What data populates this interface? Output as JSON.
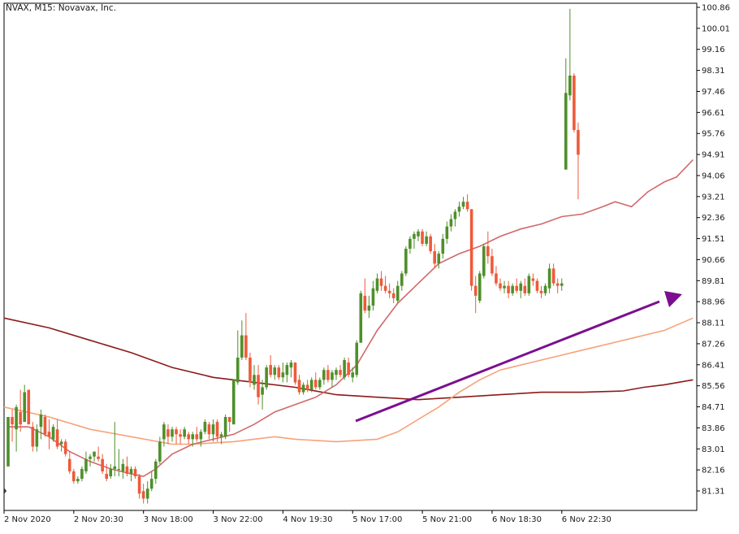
{
  "window": {
    "title": "NVAX, M15:  Novavax, Inc."
  },
  "colors": {
    "background": "#ffffff",
    "frame": "#000000",
    "bull_candle": "#4e8f2a",
    "bear_candle": "#ee5a3a",
    "ma_fast": "#d2686a",
    "ma_mid": "#f7a27a",
    "ma_slow": "#8b1a1a",
    "arrow": "#7b0f8f"
  },
  "chart_data": {
    "type": "candlestick",
    "title": "NVAX, M15:  Novavax, Inc.",
    "symbol": "NVAX",
    "timeframe": "M15",
    "company": "Novavax, Inc.",
    "ylim": [
      80.6,
      101.2
    ],
    "y_ticks": [
      "100.86",
      "100.01",
      "99.16",
      "98.31",
      "97.46",
      "96.61",
      "95.76",
      "94.91",
      "94.06",
      "93.21",
      "92.36",
      "91.51",
      "90.66",
      "89.81",
      "88.96",
      "88.11",
      "87.26",
      "86.41",
      "85.56",
      "84.71",
      "83.86",
      "83.01",
      "82.16",
      "81.31"
    ],
    "x_ticks": [
      "2 Nov 2020",
      "2 Nov 20:30",
      "3 Nov 18:00",
      "3 Nov 22:00",
      "4 Nov 19:30",
      "5 Nov 17:00",
      "5 Nov 21:00",
      "6 Nov 18:30",
      "6 Nov 22:30"
    ],
    "x_tick_bar_index": [
      0,
      17,
      34,
      51,
      68,
      85,
      102,
      119,
      136
    ],
    "grid": false,
    "candles": [
      [
        82.3,
        84.3,
        82.3,
        84.3
      ],
      [
        84.3,
        84.6,
        83.3,
        84.0
      ],
      [
        83.8,
        84.8,
        82.9,
        84.7
      ],
      [
        84.5,
        85.4,
        83.7,
        84.0
      ],
      [
        84.1,
        85.6,
        84.1,
        85.3
      ],
      [
        85.4,
        85.4,
        84.0,
        84.0
      ],
      [
        83.9,
        84.1,
        82.9,
        83.1
      ],
      [
        83.1,
        84.0,
        82.9,
        83.8
      ],
      [
        83.9,
        84.6,
        83.4,
        84.4
      ],
      [
        84.3,
        84.4,
        83.5,
        83.6
      ],
      [
        83.7,
        84.2,
        83.0,
        83.5
      ],
      [
        83.4,
        84.0,
        83.3,
        83.9
      ],
      [
        83.8,
        84.2,
        83.0,
        83.1
      ],
      [
        83.2,
        83.4,
        82.9,
        83.3
      ],
      [
        83.3,
        83.4,
        82.7,
        82.8
      ],
      [
        82.6,
        82.9,
        82.0,
        82.1
      ],
      [
        82.1,
        82.2,
        81.6,
        81.7
      ],
      [
        81.7,
        81.9,
        81.6,
        81.8
      ],
      [
        81.8,
        82.3,
        81.7,
        82.2
      ],
      [
        82.1,
        82.9,
        82.0,
        82.6
      ],
      [
        82.6,
        82.8,
        82.3,
        82.7
      ],
      [
        82.7,
        82.9,
        82.5,
        82.9
      ],
      [
        82.7,
        83.1,
        82.5,
        82.6
      ],
      [
        82.6,
        82.8,
        82.0,
        82.1
      ],
      [
        82.0,
        82.4,
        81.7,
        81.8
      ],
      [
        81.9,
        82.4,
        81.8,
        82.2
      ],
      [
        82.2,
        84.1,
        81.9,
        82.3
      ],
      [
        82.2,
        83.0,
        81.9,
        82.2
      ],
      [
        82.1,
        82.6,
        81.8,
        82.4
      ],
      [
        82.3,
        82.7,
        81.9,
        82.0
      ],
      [
        82.0,
        82.3,
        81.7,
        82.2
      ],
      [
        82.2,
        82.3,
        81.8,
        81.9
      ],
      [
        81.9,
        82.0,
        81.0,
        81.2
      ],
      [
        81.3,
        81.6,
        80.8,
        81.0
      ],
      [
        81.0,
        81.7,
        80.8,
        81.4
      ],
      [
        81.4,
        82.1,
        81.3,
        81.8
      ],
      [
        81.8,
        82.6,
        81.6,
        82.5
      ],
      [
        82.5,
        83.5,
        82.4,
        83.3
      ],
      [
        83.4,
        84.1,
        83.1,
        84.0
      ],
      [
        83.8,
        84.0,
        83.2,
        83.5
      ],
      [
        83.5,
        83.9,
        83.3,
        83.8
      ],
      [
        83.8,
        83.9,
        83.2,
        83.6
      ],
      [
        83.6,
        83.8,
        83.2,
        83.5
      ],
      [
        83.5,
        83.9,
        83.4,
        83.8
      ],
      [
        83.6,
        83.7,
        83.2,
        83.4
      ],
      [
        83.4,
        83.7,
        83.1,
        83.6
      ],
      [
        83.6,
        83.9,
        83.3,
        83.4
      ],
      [
        83.4,
        83.8,
        83.1,
        83.7
      ],
      [
        83.7,
        84.2,
        83.6,
        84.1
      ],
      [
        84.0,
        84.1,
        83.4,
        83.6
      ],
      [
        83.6,
        84.2,
        83.3,
        84.0
      ],
      [
        84.1,
        84.2,
        83.3,
        83.5
      ],
      [
        83.5,
        83.7,
        83.2,
        83.6
      ],
      [
        83.5,
        84.4,
        83.4,
        84.3
      ],
      [
        84.3,
        84.2,
        83.7,
        84.1
      ],
      [
        84.0,
        85.8,
        84.0,
        85.8
      ],
      [
        85.7,
        87.8,
        85.6,
        86.7
      ],
      [
        86.7,
        88.2,
        86.6,
        87.6
      ],
      [
        87.6,
        88.5,
        86.6,
        86.7
      ],
      [
        86.7,
        86.9,
        85.5,
        85.7
      ],
      [
        85.6,
        86.4,
        85.4,
        86.0
      ],
      [
        86.0,
        86.4,
        84.8,
        85.1
      ],
      [
        85.2,
        85.8,
        84.6,
        85.5
      ],
      [
        85.5,
        86.4,
        85.4,
        86.3
      ],
      [
        86.4,
        86.8,
        85.9,
        86.0
      ],
      [
        86.0,
        86.4,
        85.8,
        86.3
      ],
      [
        86.3,
        86.4,
        85.8,
        85.9
      ],
      [
        85.9,
        86.5,
        85.7,
        86.1
      ],
      [
        86.0,
        86.5,
        85.7,
        86.4
      ],
      [
        86.3,
        86.6,
        85.9,
        86.5
      ],
      [
        86.5,
        86.5,
        85.6,
        85.7
      ],
      [
        85.8,
        86.0,
        85.2,
        85.3
      ],
      [
        85.3,
        85.7,
        85.2,
        85.6
      ],
      [
        85.6,
        85.8,
        85.3,
        85.4
      ],
      [
        85.4,
        85.9,
        85.3,
        85.8
      ],
      [
        85.8,
        86.1,
        85.4,
        85.5
      ],
      [
        85.5,
        85.9,
        85.4,
        85.8
      ],
      [
        85.8,
        86.3,
        85.6,
        86.2
      ],
      [
        86.2,
        86.4,
        85.7,
        85.8
      ],
      [
        85.8,
        86.2,
        85.5,
        86.1
      ],
      [
        86.0,
        86.3,
        85.8,
        86.2
      ],
      [
        86.2,
        86.4,
        85.9,
        86.0
      ],
      [
        85.9,
        86.7,
        85.8,
        86.6
      ],
      [
        86.5,
        86.7,
        85.9,
        86.0
      ],
      [
        85.9,
        86.3,
        85.7,
        86.1
      ],
      [
        86.0,
        87.4,
        85.9,
        87.3
      ],
      [
        87.3,
        89.4,
        87.3,
        89.3
      ],
      [
        89.2,
        89.9,
        88.5,
        88.6
      ],
      [
        88.6,
        89.2,
        88.3,
        88.8
      ],
      [
        88.8,
        89.8,
        88.6,
        89.5
      ],
      [
        89.4,
        90.1,
        89.3,
        89.9
      ],
      [
        89.9,
        90.2,
        89.4,
        89.6
      ],
      [
        89.6,
        90.0,
        89.3,
        89.4
      ],
      [
        89.4,
        89.7,
        89.1,
        89.3
      ],
      [
        89.3,
        89.5,
        88.9,
        89.1
      ],
      [
        89.0,
        89.8,
        88.9,
        89.6
      ],
      [
        89.6,
        90.2,
        89.4,
        90.1
      ],
      [
        90.1,
        91.2,
        90.0,
        91.1
      ],
      [
        91.1,
        91.6,
        90.9,
        91.5
      ],
      [
        91.5,
        91.8,
        91.1,
        91.7
      ],
      [
        91.6,
        91.9,
        91.4,
        91.8
      ],
      [
        91.8,
        91.9,
        91.2,
        91.3
      ],
      [
        91.3,
        91.8,
        91.2,
        91.6
      ],
      [
        91.6,
        91.7,
        90.9,
        91.0
      ],
      [
        91.0,
        91.3,
        90.3,
        90.5
      ],
      [
        90.5,
        91.0,
        90.3,
        90.9
      ],
      [
        90.9,
        91.7,
        90.7,
        91.5
      ],
      [
        91.5,
        92.2,
        91.3,
        92.0
      ],
      [
        92.0,
        92.5,
        91.8,
        92.3
      ],
      [
        92.3,
        92.7,
        92.0,
        92.6
      ],
      [
        92.6,
        93.0,
        92.4,
        92.8
      ],
      [
        92.8,
        93.2,
        92.7,
        93.0
      ],
      [
        93.0,
        93.3,
        92.6,
        92.7
      ],
      [
        92.7,
        92.7,
        89.4,
        89.6
      ],
      [
        89.6,
        90.0,
        88.5,
        89.2
      ],
      [
        89.0,
        90.2,
        88.9,
        90.1
      ],
      [
        90.0,
        91.3,
        89.9,
        91.2
      ],
      [
        91.2,
        91.8,
        90.5,
        90.8
      ],
      [
        90.8,
        91.1,
        90.0,
        90.1
      ],
      [
        90.1,
        90.4,
        89.6,
        89.7
      ],
      [
        89.7,
        89.9,
        89.4,
        89.5
      ],
      [
        89.5,
        89.8,
        89.3,
        89.6
      ],
      [
        89.6,
        89.8,
        89.1,
        89.3
      ],
      [
        89.3,
        89.7,
        89.2,
        89.6
      ],
      [
        89.6,
        89.9,
        89.3,
        89.4
      ],
      [
        89.4,
        89.8,
        89.1,
        89.7
      ],
      [
        89.6,
        89.9,
        89.2,
        89.3
      ],
      [
        89.3,
        90.1,
        89.2,
        90.0
      ],
      [
        89.9,
        90.1,
        89.6,
        89.8
      ],
      [
        89.8,
        89.9,
        89.3,
        89.4
      ],
      [
        89.4,
        89.6,
        89.1,
        89.3
      ],
      [
        89.3,
        89.7,
        89.2,
        89.6
      ],
      [
        89.5,
        90.5,
        89.3,
        90.3
      ],
      [
        90.3,
        90.5,
        89.6,
        89.7
      ],
      [
        89.7,
        89.9,
        89.3,
        89.6
      ],
      [
        89.6,
        89.9,
        89.4,
        89.7
      ],
      [
        94.3,
        98.8,
        94.3,
        97.4
      ],
      [
        97.3,
        100.8,
        97.1,
        98.1
      ],
      [
        98.1,
        98.2,
        95.8,
        95.9
      ],
      [
        95.9,
        96.2,
        93.1,
        94.9
      ]
    ],
    "series": [
      {
        "role": "fast",
        "color": "#d2686a",
        "points": [
          [
            0,
            83.9
          ],
          [
            5,
            83.9
          ],
          [
            10,
            83.5
          ],
          [
            15,
            82.9
          ],
          [
            20,
            82.5
          ],
          [
            25,
            82.2
          ],
          [
            30,
            82.0
          ],
          [
            33,
            81.9
          ],
          [
            36,
            82.2
          ],
          [
            40,
            82.8
          ],
          [
            45,
            83.2
          ],
          [
            50,
            83.4
          ],
          [
            55,
            83.6
          ],
          [
            60,
            84.0
          ],
          [
            65,
            84.5
          ],
          [
            70,
            84.8
          ],
          [
            75,
            85.1
          ],
          [
            80,
            85.6
          ],
          [
            85,
            86.4
          ],
          [
            90,
            87.8
          ],
          [
            95,
            88.9
          ],
          [
            100,
            89.7
          ],
          [
            105,
            90.5
          ],
          [
            110,
            90.9
          ],
          [
            115,
            91.2
          ],
          [
            120,
            91.6
          ],
          [
            125,
            91.9
          ],
          [
            130,
            92.1
          ],
          [
            135,
            92.4
          ],
          [
            140,
            92.5
          ],
          [
            145,
            92.8
          ],
          [
            148,
            93.0
          ],
          [
            152,
            92.8
          ],
          [
            156,
            93.4
          ],
          [
            160,
            93.8
          ],
          [
            163,
            94.0
          ],
          [
            167,
            94.7
          ]
        ],
        "note": ""
      }
    ]
  }
}
